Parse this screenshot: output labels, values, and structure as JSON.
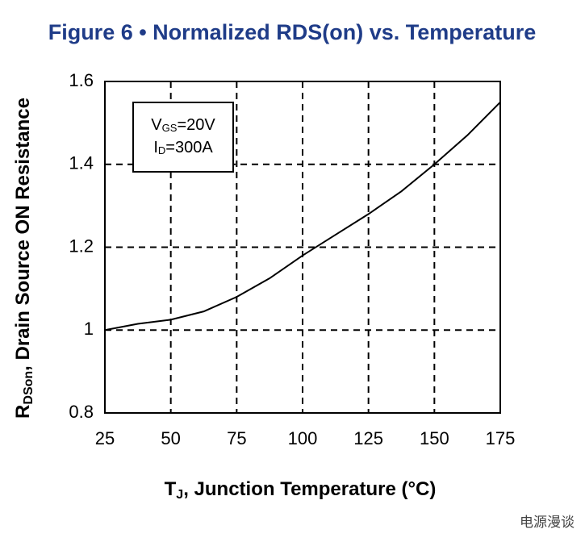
{
  "chart_data": {
    "type": "line",
    "title": "Figure 6 • Normalized RDS(on) vs. Temperature",
    "x_label": {
      "main": "T",
      "sub": "J",
      "rest": ", Junction Temperature (°C)"
    },
    "y_label": {
      "main": "R",
      "sub": "DSon",
      "rest": ", Drain Source ON Resistance"
    },
    "annotation": {
      "line1": {
        "main": "V",
        "sub": "GS",
        "rest": "=20V"
      },
      "line2": {
        "main": "I",
        "sub": "D",
        "rest": "=300A"
      }
    },
    "watermark": "电源漫谈",
    "x": [
      25,
      37.5,
      50,
      62.5,
      75,
      87.5,
      100,
      112.5,
      125,
      137.5,
      150,
      162.5,
      175
    ],
    "series": [
      {
        "color": "#000000",
        "values": [
          1.0,
          1.015,
          1.025,
          1.045,
          1.08,
          1.125,
          1.18,
          1.23,
          1.28,
          1.335,
          1.4,
          1.47,
          1.55
        ]
      }
    ],
    "xlim": [
      25,
      175
    ],
    "xticks": [
      25,
      50,
      75,
      100,
      125,
      150,
      175
    ],
    "ylim": [
      0.8,
      1.6
    ],
    "yticks": [
      0.8,
      1,
      1.2,
      1.4,
      1.6
    ],
    "grid": true
  }
}
